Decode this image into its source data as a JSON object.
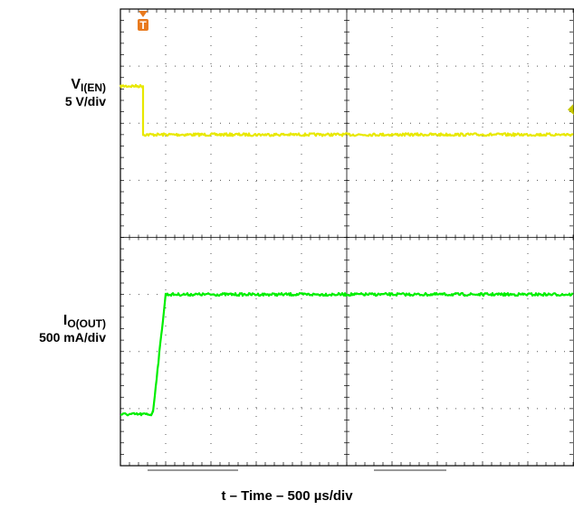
{
  "chart_data": {
    "type": "line",
    "title": "",
    "xlabel": "t – Time – 500 µs/div",
    "ylabel": "",
    "grid": true,
    "x_divisions": 10,
    "y_divisions": 8,
    "xlim": [
      0,
      10
    ],
    "ylim": [
      0,
      8
    ],
    "trigger_marker": "T",
    "channels": [
      {
        "name": "V",
        "subscript": "I(EN)",
        "scale": "5 V/div",
        "color": "#e8e800",
        "points": [
          [
            0,
            6.65
          ],
          [
            0.5,
            6.65
          ],
          [
            0.5,
            5.8
          ],
          [
            10,
            5.8
          ]
        ]
      },
      {
        "name": "I",
        "subscript": "O(OUT)",
        "scale": "500 mA/div",
        "color": "#00ee00",
        "points": [
          [
            0,
            0.9
          ],
          [
            0.68,
            0.9
          ],
          [
            0.72,
            0.95
          ],
          [
            1.0,
            3.0
          ],
          [
            1.0,
            3.0
          ],
          [
            10,
            3.0
          ]
        ]
      }
    ]
  }
}
